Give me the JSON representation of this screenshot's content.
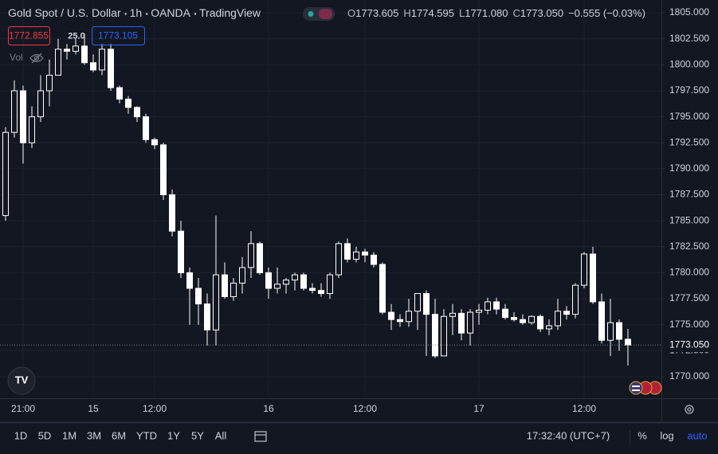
{
  "chart_data": {
    "type": "candlestick",
    "title": "Gold Spot / U.S. Dollar",
    "interval": "1h",
    "source": "OANDA",
    "platform": "TradingView",
    "header": {
      "o_label": "O",
      "open": "1773.605",
      "h_label": "H",
      "high": "1774.595",
      "l_label": "L",
      "low": "1771.080",
      "c_label": "C",
      "close": "1773.050",
      "change": "−0.555 (−0.03%)"
    },
    "bid": "1772.855",
    "spread": "25.0",
    "ask": "1773.105",
    "volume_label": "Vol",
    "categories": [
      null,
      null,
      "21:00",
      null,
      null,
      null,
      null,
      null,
      null,
      null,
      "15",
      null,
      null,
      null,
      null,
      null,
      null,
      "12:00",
      null,
      null,
      null,
      null,
      null,
      null,
      null,
      null,
      null,
      null,
      null,
      null,
      "16",
      null,
      null,
      null,
      null,
      null,
      null,
      null,
      null,
      null,
      null,
      "12:00",
      null,
      null,
      null,
      null,
      null,
      null,
      null,
      null,
      null,
      null,
      null,
      null,
      "17",
      null,
      null,
      null,
      null,
      null,
      null,
      null,
      null,
      null,
      null,
      null,
      "12:00",
      null,
      null,
      null,
      null,
      null
    ],
    "open": [
      1785.5,
      1793.5,
      1797.5,
      1792.5,
      1795,
      1797.5,
      1799,
      1801.5,
      1801.3,
      1801.8,
      1800.2,
      1799.5,
      1801.5,
      1797.8,
      1796.7,
      1795.9,
      1795,
      1792.8,
      1792.3,
      1787.5,
      1784,
      1780,
      1778.5,
      1777,
      1774.5,
      1779.8,
      1777.7,
      1779,
      1780.5,
      1782.8,
      1780,
      1778.5,
      1778.9,
      1779.3,
      1779.8,
      1778.5,
      1778.3,
      1778,
      1779.8,
      1782.8,
      1781.3,
      1782,
      1781.7,
      1780.8,
      1776.2,
      1775.5,
      1775.3,
      1776.3,
      1778,
      1776,
      1772,
      1775.8,
      1776.1,
      1774.2,
      1776.2,
      1776.4,
      1777.2,
      1776.5,
      1775.7,
      1775.5,
      1775.2,
      1775.8,
      1774.6,
      1774.9,
      1776.3,
      1776,
      1778.8,
      1781.8,
      1777.2,
      1773.5,
      1775.2,
      1773.605
    ],
    "high": [
      1794,
      1798.5,
      1798,
      1796,
      1799,
      1800.5,
      1802.5,
      1802,
      1802.5,
      1803,
      1801,
      1802,
      1802,
      1798,
      1797,
      1796,
      1795.3,
      1793,
      1792.5,
      1788,
      1785,
      1780.5,
      1779.5,
      1778,
      1785.5,
      1781,
      1779.5,
      1781.5,
      1784,
      1783,
      1780.5,
      1780.5,
      1779.5,
      1780,
      1780,
      1779,
      1779,
      1780,
      1783,
      1783.3,
      1782.5,
      1782.3,
      1782,
      1781,
      1777,
      1776,
      1777.5,
      1778,
      1778.3,
      1777.5,
      1776.5,
      1777,
      1776.5,
      1776.5,
      1777,
      1777.6,
      1777.6,
      1777,
      1776.2,
      1776,
      1775.9,
      1776,
      1775.5,
      1777.5,
      1776.8,
      1779,
      1782,
      1782.5,
      1778,
      1777.5,
      1775.5,
      1774.595
    ],
    "low": [
      1785,
      1793,
      1790.5,
      1792,
      1794.5,
      1796,
      1799,
      1800.5,
      1801,
      1800,
      1799.3,
      1799,
      1797.5,
      1796.3,
      1795.3,
      1794.5,
      1792.5,
      1791.9,
      1787,
      1783.5,
      1779.5,
      1775,
      1775,
      1773,
      1773,
      1777.5,
      1777.3,
      1778,
      1779.5,
      1779.8,
      1777.5,
      1778,
      1778,
      1778.3,
      1778.3,
      1778,
      1777.7,
      1777.5,
      1779.5,
      1781,
      1781,
      1781,
      1780.5,
      1776,
      1774.5,
      1774.8,
      1774.8,
      1774.5,
      1772,
      1771.8,
      1772,
      1774,
      1773.5,
      1773,
      1775,
      1776,
      1776,
      1775.5,
      1775.3,
      1775,
      1775,
      1774.3,
      1774,
      1774.5,
      1775.5,
      1775.6,
      1778.5,
      1777,
      1773.2,
      1772,
      1772.5,
      1771.08
    ],
    "close": [
      1793.5,
      1797.5,
      1792.5,
      1795,
      1797.5,
      1799,
      1801.5,
      1801.3,
      1801.8,
      1800.2,
      1799.5,
      1801.5,
      1797.8,
      1796.7,
      1795.9,
      1795,
      1792.8,
      1792.3,
      1787.5,
      1784,
      1780,
      1778.5,
      1777,
      1774.5,
      1779.8,
      1777.7,
      1779,
      1780.5,
      1782.8,
      1780,
      1778.5,
      1778.9,
      1779.3,
      1779.8,
      1778.5,
      1778.3,
      1778,
      1779.8,
      1782.8,
      1781.3,
      1782,
      1781.7,
      1780.8,
      1776.2,
      1775.5,
      1775.3,
      1776.3,
      1778,
      1776,
      1772,
      1775.8,
      1776.1,
      1774.2,
      1776.2,
      1776.4,
      1777.2,
      1776.5,
      1775.7,
      1775.5,
      1775.2,
      1775.8,
      1774.6,
      1774.9,
      1776.3,
      1776,
      1778.8,
      1781.8,
      1777.2,
      1773.5,
      1775.2,
      1773.6,
      1773.05
    ],
    "ylim": [
      1767.93,
      1806.23
    ],
    "yticks": [
      {
        "value": 1770,
        "label": "1770.000"
      },
      {
        "value": 1772.5,
        "label": "1772.500"
      },
      {
        "value": 1775,
        "label": "1775.000"
      },
      {
        "value": 1777.5,
        "label": "1777.500"
      },
      {
        "value": 1780,
        "label": "1780.000"
      },
      {
        "value": 1782.5,
        "label": "1782.500"
      },
      {
        "value": 1785,
        "label": "1785.000"
      },
      {
        "value": 1787.5,
        "label": "1787.500"
      },
      {
        "value": 1790,
        "label": "1790.000"
      },
      {
        "value": 1792.5,
        "label": "1792.500"
      },
      {
        "value": 1795,
        "label": "1795.000"
      },
      {
        "value": 1797.5,
        "label": "1797.500"
      },
      {
        "value": 1800,
        "label": "1800.000"
      },
      {
        "value": 1802.5,
        "label": "1802.500"
      },
      {
        "value": 1805,
        "label": "1805.000"
      }
    ],
    "grid": true,
    "up_color": "#131722",
    "down_color": "#ffffff",
    "wick_color": "#ffffff"
  },
  "toolbar": {
    "ranges": [
      "1D",
      "5D",
      "1M",
      "3M",
      "6M",
      "YTD",
      "1Y",
      "5Y",
      "All"
    ],
    "time": "17:32:40 (UTC+7)",
    "percent": "%",
    "log": "log",
    "auto": "auto"
  }
}
